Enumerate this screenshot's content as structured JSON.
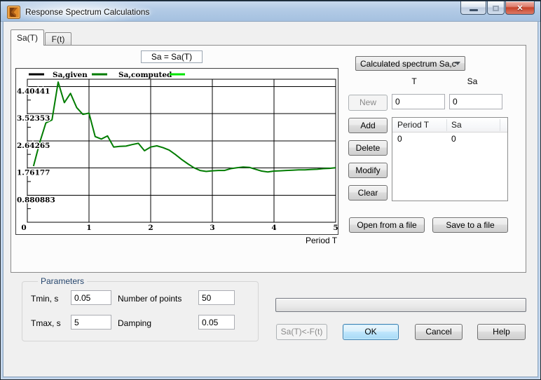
{
  "window": {
    "title": "Response Spectrum Calculations",
    "controls": {
      "minimize": "minimize",
      "maximize": "maximize",
      "close": "close"
    }
  },
  "tabs": [
    {
      "label": "Sa(T)",
      "active": true
    },
    {
      "label": "F(t)",
      "active": false
    }
  ],
  "chart_header": "Sa = Sa(T)",
  "chart_data": {
    "type": "line",
    "title": "Sa = Sa(T)",
    "xlabel": "Period T",
    "xlim": [
      0,
      5
    ],
    "ylim": [
      0,
      4.64
    ],
    "grid": true,
    "x_ticks": [
      0,
      1,
      2,
      3,
      4,
      5
    ],
    "y_ticks": [
      0.880883,
      1.76177,
      2.64265,
      3.52353,
      4.40441
    ],
    "y_tick_labels": [
      "0.880883",
      "1.76177",
      "2.64265",
      "3.52353",
      "4.40441"
    ],
    "x_tick_labels": [
      "0",
      "1",
      "2",
      "3",
      "4",
      "5"
    ],
    "legend_position": "top",
    "legend": [
      {
        "label": "Sa,given",
        "color": "#000000"
      },
      {
        "label": "Sa,computed",
        "color": "#007c00"
      },
      {
        "label": "",
        "color": "#00e400"
      }
    ],
    "series": [
      {
        "name": "Sa,computed",
        "color": "#007c00",
        "x": [
          0.1,
          0.2,
          0.3,
          0.4,
          0.5,
          0.6,
          0.7,
          0.8,
          0.9,
          1.0,
          1.1,
          1.2,
          1.3,
          1.4,
          1.5,
          1.6,
          1.7,
          1.8,
          1.9,
          2.0,
          2.1,
          2.2,
          2.3,
          2.4,
          2.5,
          2.6,
          2.7,
          2.8,
          2.9,
          3.0,
          3.1,
          3.2,
          3.3,
          3.4,
          3.5,
          3.6,
          3.7,
          3.8,
          3.9,
          4.0,
          4.1,
          4.2,
          4.3,
          4.4,
          4.5,
          4.6,
          4.7,
          4.8,
          4.9,
          5.0
        ],
        "y": [
          1.82,
          2.58,
          3.22,
          3.32,
          4.55,
          3.88,
          4.18,
          3.72,
          3.5,
          3.54,
          2.78,
          2.7,
          2.8,
          2.44,
          2.46,
          2.47,
          2.52,
          2.56,
          2.32,
          2.44,
          2.48,
          2.42,
          2.34,
          2.2,
          2.04,
          1.9,
          1.77,
          1.68,
          1.65,
          1.67,
          1.68,
          1.68,
          1.74,
          1.77,
          1.79,
          1.78,
          1.72,
          1.66,
          1.63,
          1.66,
          1.67,
          1.68,
          1.69,
          1.7,
          1.7,
          1.71,
          1.72,
          1.74,
          1.75,
          1.77
        ]
      }
    ]
  },
  "right_panel": {
    "spectrum_select_value": "Calculated spectrum Sa,c",
    "t_label": "T",
    "sa_label": "Sa",
    "t_value": "0",
    "sa_value": "0",
    "buttons": {
      "new": "New",
      "add": "Add",
      "delete": "Delete",
      "modify": "Modify",
      "clear": "Clear",
      "open": "Open from a file",
      "save": "Save to a file"
    },
    "table": {
      "columns": [
        "Period T",
        "Sa"
      ],
      "rows": [
        [
          "0",
          "0"
        ]
      ]
    }
  },
  "parameters": {
    "legend": "Parameters",
    "tmin_label": "Tmin, s",
    "tmin_value": "0.05",
    "npoints_label": "Number of points",
    "npoints_value": "50",
    "tmax_label": "Tmax, s",
    "tmax_value": "5",
    "damping_label": "Damping",
    "damping_value": "0.05"
  },
  "footer": {
    "progress_value": "0",
    "convert_button": "Sa(T)<-F(t)",
    "ok": "OK",
    "cancel": "Cancel",
    "help": "Help"
  }
}
